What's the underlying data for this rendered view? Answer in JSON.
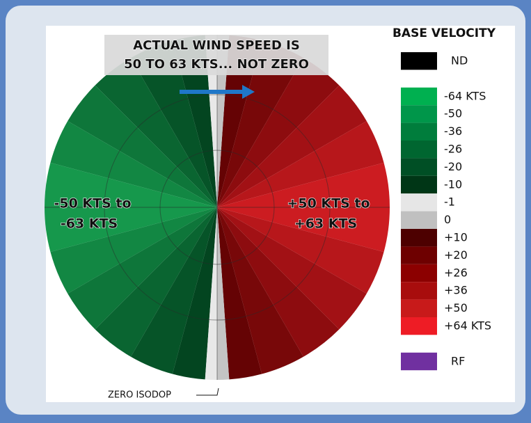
{
  "banner": {
    "lines": [
      "ACTUAL WIND SPEED IS",
      "50 TO 63 KTS... NOT ZERO"
    ]
  },
  "left_label": [
    "-50 KTS to",
    "-63 KTS"
  ],
  "right_label": [
    "+50 KTS to",
    "+63 KTS"
  ],
  "zero_isodop": "ZERO ISODOP",
  "legend": {
    "title": "BASE VELOCITY",
    "items": [
      {
        "label": "ND",
        "color": "#000000"
      },
      {
        "color": "#ffffff"
      },
      {
        "label": "-64 KTS",
        "color": "#00b050"
      },
      {
        "label": "-50",
        "color": "#00964a"
      },
      {
        "label": "-36",
        "color": "#007d3c"
      },
      {
        "label": "-26",
        "color": "#006630"
      },
      {
        "label": "-20",
        "color": "#004f25"
      },
      {
        "label": "-10",
        "color": "#003616"
      },
      {
        "label": "-1",
        "color": "#e6e6e6"
      },
      {
        "label": "0",
        "color": "#c0c0c0"
      },
      {
        "label": "+10",
        "color": "#4d0000"
      },
      {
        "label": "+20",
        "color": "#6e0000"
      },
      {
        "label": "+26",
        "color": "#8c0000"
      },
      {
        "label": "+36",
        "color": "#a80d0d"
      },
      {
        "label": "+50",
        "color": "#c81a1a"
      },
      {
        "label": "+64 KTS",
        "color": "#ee1c25"
      },
      {
        "color": "#ffffff"
      },
      {
        "label": "RF",
        "color": "#7030a0"
      }
    ]
  }
}
